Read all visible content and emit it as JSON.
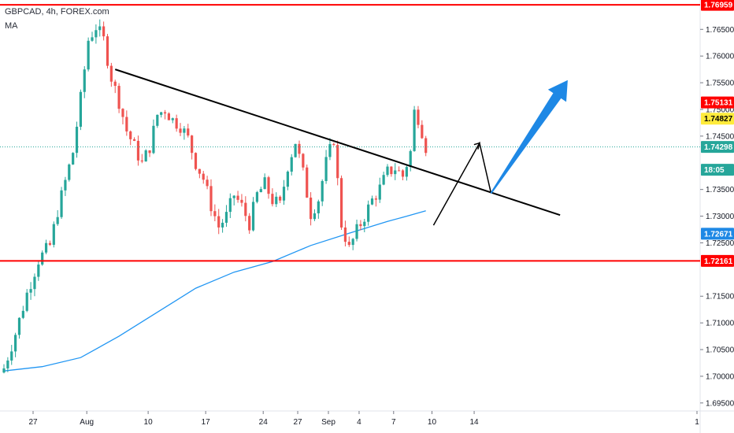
{
  "legend": {
    "symbol_line": "GBPCAD, 4h, FOREX.com",
    "indicator": "MA"
  },
  "colors": {
    "up": "#26a69a",
    "down": "#ef5350",
    "ma": "#2196f3",
    "hline": "#ff0000",
    "trend": "#000000",
    "arrow": "#1e88e5",
    "price_line": "#26a69a"
  },
  "chart_data": {
    "type": "candlestick",
    "title": "GBPCAD, 4h, FOREX.com",
    "yaxis": {
      "ticks": [
        "1.76500",
        "1.76000",
        "1.75500",
        "1.75000",
        "1.74500",
        "1.73500",
        "1.73000",
        "1.72500",
        "1.71500",
        "1.71000",
        "1.70500",
        "1.70000",
        "1.69500"
      ],
      "tick_values": [
        1.765,
        1.76,
        1.755,
        1.75,
        1.745,
        1.735,
        1.73,
        1.725,
        1.715,
        1.71,
        1.705,
        1.7,
        1.695
      ],
      "range": [
        1.6935,
        1.7705
      ]
    },
    "xaxis": {
      "ticks": [
        "27",
        "Aug",
        "10",
        "17",
        "24",
        "27",
        "Sep",
        "4",
        "7",
        "10",
        "14",
        "1"
      ],
      "tick_index": [
        5,
        19,
        35,
        50,
        65,
        74,
        82,
        90,
        99,
        109,
        120,
        129
      ]
    },
    "horizontal_levels": [
      {
        "value": 1.76959,
        "label": "1.76959"
      },
      {
        "value": 1.72161,
        "label": "1.72161"
      }
    ],
    "price_badges": [
      {
        "value": 1.75131,
        "label": "1.75131",
        "bg": "#ff0000",
        "fg": "#ffffff"
      },
      {
        "value": 1.74827,
        "label": "1.74827",
        "bg": "#ffeb3b",
        "fg": "#000000"
      },
      {
        "value": 1.74298,
        "label": "1.74298",
        "bg": "#26a69a",
        "fg": "#ffffff"
      },
      {
        "value": 1.7387,
        "label": "18:05",
        "bg": "#26a69a",
        "fg": "#ffffff"
      },
      {
        "value": 1.72671,
        "label": "1.72671",
        "bg": "#1e88e5",
        "fg": "#ffffff"
      },
      {
        "value": 1.72161,
        "label": "1.72161",
        "bg": "#ff0000",
        "fg": "#ffffff"
      },
      {
        "value": 1.76959,
        "label": "1.76959",
        "bg": "#ff0000",
        "fg": "#ffffff"
      }
    ],
    "current_price": 1.74298,
    "close_path": [
      [
        0,
        1.7015
      ],
      [
        3,
        1.708
      ],
      [
        6,
        1.7155
      ],
      [
        9,
        1.7218
      ],
      [
        12,
        1.7245
      ],
      [
        14,
        1.731
      ],
      [
        16,
        1.7365
      ],
      [
        18,
        1.742
      ],
      [
        20,
        1.752
      ],
      [
        22,
        1.763
      ],
      [
        24,
        1.7655
      ],
      [
        26,
        1.763
      ],
      [
        28,
        1.756
      ],
      [
        30,
        1.7515
      ],
      [
        32,
        1.746
      ],
      [
        34,
        1.743
      ],
      [
        36,
        1.7398
      ],
      [
        38,
        1.743
      ],
      [
        40,
        1.749
      ],
      [
        42,
        1.75
      ],
      [
        44,
        1.748
      ],
      [
        46,
        1.747
      ],
      [
        48,
        1.7445
      ],
      [
        50,
        1.74
      ],
      [
        52,
        1.737
      ],
      [
        54,
        1.732
      ],
      [
        56,
        1.728
      ],
      [
        58,
        1.73
      ],
      [
        60,
        1.734
      ],
      [
        62,
        1.7318
      ],
      [
        64,
        1.7286
      ],
      [
        66,
        1.734
      ],
      [
        68,
        1.736
      ],
      [
        70,
        1.733
      ],
      [
        72,
        1.732
      ],
      [
        74,
        1.7395
      ],
      [
        76,
        1.744
      ],
      [
        78,
        1.738
      ],
      [
        80,
        1.7305
      ],
      [
        82,
        1.7332
      ],
      [
        84,
        1.74
      ],
      [
        86,
        1.7445
      ],
      [
        88,
        1.7285
      ],
      [
        90,
        1.7238
      ],
      [
        92,
        1.7272
      ],
      [
        94,
        1.73
      ],
      [
        96,
        1.733
      ],
      [
        98,
        1.7352
      ],
      [
        100,
        1.7382
      ],
      [
        102,
        1.739
      ],
      [
        104,
        1.7375
      ],
      [
        106,
        1.742
      ],
      [
        107,
        1.7495
      ],
      [
        108,
        1.7485
      ],
      [
        109,
        1.746
      ],
      [
        110,
        1.743
      ]
    ],
    "ma_path": [
      [
        0,
        1.701
      ],
      [
        10,
        1.7018
      ],
      [
        20,
        1.7035
      ],
      [
        30,
        1.7075
      ],
      [
        40,
        1.712
      ],
      [
        50,
        1.7165
      ],
      [
        60,
        1.7195
      ],
      [
        70,
        1.7215
      ],
      [
        80,
        1.7245
      ],
      [
        90,
        1.7268
      ],
      [
        100,
        1.729
      ],
      [
        105,
        1.73
      ],
      [
        110,
        1.731
      ]
    ],
    "trendline": {
      "from": [
        29,
        1.7575
      ],
      "to": [
        145,
        1.7302
      ]
    },
    "arrow_path": [
      [
        112,
        1.7283
      ],
      [
        124,
        1.7437
      ],
      [
        127,
        1.7343
      ],
      [
        147,
        1.7555
      ]
    ]
  }
}
